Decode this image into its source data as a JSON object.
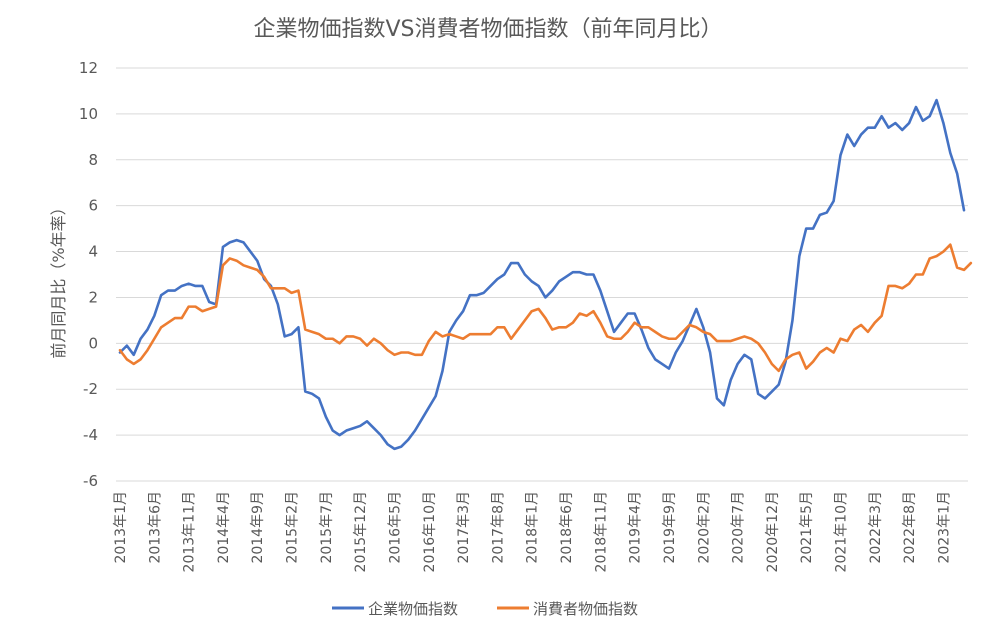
{
  "chart_data": {
    "type": "line",
    "title": "企業物価指数VS消費者物価指数（前年同月比）",
    "xlabel": "",
    "ylabel": "前月同月比（%年率）",
    "ylim": [
      -6,
      12
    ],
    "yticks": [
      -6,
      -4,
      -2,
      0,
      2,
      4,
      6,
      8,
      10,
      12
    ],
    "x_start": "2013-01",
    "x_tick_labels": [
      "2013年1月",
      "2013年6月",
      "2013年11月",
      "2014年4月",
      "2014年9月",
      "2015年2月",
      "2015年7月",
      "2015年12月",
      "2016年5月",
      "2016年10月",
      "2017年3月",
      "2017年8月",
      "2018年1月",
      "2018年6月",
      "2018年11月",
      "2019年4月",
      "2019年9月",
      "2020年2月",
      "2020年7月",
      "2020年12月",
      "2021年5月",
      "2021年10月",
      "2022年3月",
      "2022年8月",
      "2023年1月"
    ],
    "grid": true,
    "legend": "bottom",
    "series": [
      {
        "name": "企業物価指数",
        "color": "#4472C4",
        "values": [
          -0.4,
          -0.1,
          -0.5,
          0.2,
          0.6,
          1.2,
          2.1,
          2.3,
          2.3,
          2.5,
          2.6,
          2.5,
          2.5,
          1.8,
          1.7,
          4.2,
          4.4,
          4.5,
          4.4,
          4.0,
          3.6,
          2.8,
          2.5,
          1.7,
          0.3,
          0.4,
          0.7,
          -2.1,
          -2.2,
          -2.4,
          -3.2,
          -3.8,
          -4.0,
          -3.8,
          -3.7,
          -3.6,
          -3.4,
          -3.7,
          -4.0,
          -4.4,
          -4.6,
          -4.5,
          -4.2,
          -3.8,
          -3.3,
          -2.8,
          -2.3,
          -1.2,
          0.5,
          1.0,
          1.4,
          2.1,
          2.1,
          2.2,
          2.5,
          2.8,
          3.0,
          3.5,
          3.5,
          3.0,
          2.7,
          2.5,
          2.0,
          2.3,
          2.7,
          2.9,
          3.1,
          3.1,
          3.0,
          3.0,
          2.3,
          1.4,
          0.5,
          0.9,
          1.3,
          1.3,
          0.6,
          -0.2,
          -0.7,
          -0.9,
          -1.1,
          -0.4,
          0.1,
          0.8,
          1.5,
          0.7,
          -0.4,
          -2.4,
          -2.7,
          -1.6,
          -0.9,
          -0.5,
          -0.7,
          -2.2,
          -2.4,
          -2.1,
          -1.8,
          -0.8,
          1.0,
          3.8,
          5.0,
          5.0,
          5.6,
          5.7,
          6.2,
          8.2,
          9.1,
          8.6,
          9.1,
          9.4,
          9.4,
          9.9,
          9.4,
          9.6,
          9.3,
          9.6,
          10.3,
          9.7,
          9.9,
          10.6,
          9.6,
          8.3,
          7.4,
          5.8
        ]
      },
      {
        "name": "消費者物価指数",
        "color": "#ED7D31",
        "values": [
          -0.3,
          -0.7,
          -0.9,
          -0.7,
          -0.3,
          0.2,
          0.7,
          0.9,
          1.1,
          1.1,
          1.6,
          1.6,
          1.4,
          1.5,
          1.6,
          3.4,
          3.7,
          3.6,
          3.4,
          3.3,
          3.2,
          2.9,
          2.4,
          2.4,
          2.4,
          2.2,
          2.3,
          0.6,
          0.5,
          0.4,
          0.2,
          0.2,
          0.0,
          0.3,
          0.3,
          0.2,
          -0.1,
          0.2,
          0.0,
          -0.3,
          -0.5,
          -0.4,
          -0.4,
          -0.5,
          -0.5,
          0.1,
          0.5,
          0.3,
          0.4,
          0.3,
          0.2,
          0.4,
          0.4,
          0.4,
          0.4,
          0.7,
          0.7,
          0.2,
          0.6,
          1.0,
          1.4,
          1.5,
          1.1,
          0.6,
          0.7,
          0.7,
          0.9,
          1.3,
          1.2,
          1.4,
          0.9,
          0.3,
          0.2,
          0.2,
          0.5,
          0.9,
          0.7,
          0.7,
          0.5,
          0.3,
          0.2,
          0.2,
          0.5,
          0.8,
          0.7,
          0.5,
          0.4,
          0.1,
          0.1,
          0.1,
          0.2,
          0.3,
          0.2,
          0.0,
          -0.4,
          -0.9,
          -1.2,
          -0.7,
          -0.5,
          -0.4,
          -1.1,
          -0.8,
          -0.4,
          -0.2,
          -0.4,
          0.2,
          0.1,
          0.6,
          0.8,
          0.5,
          0.9,
          1.2,
          2.5,
          2.5,
          2.4,
          2.6,
          3.0,
          3.0,
          3.7,
          3.8,
          4.0,
          4.3,
          3.3,
          3.2,
          3.5
        ]
      }
    ]
  }
}
